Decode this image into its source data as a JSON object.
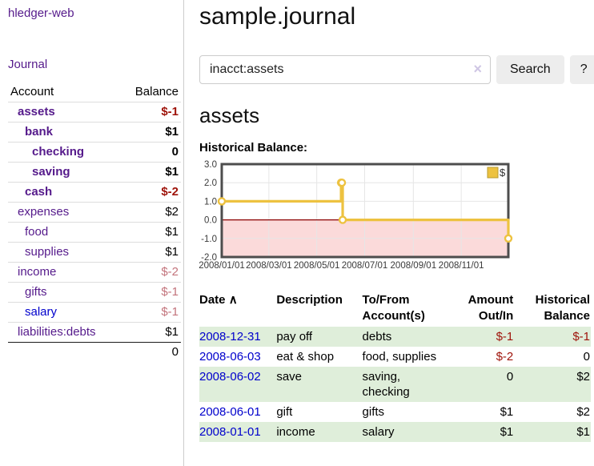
{
  "sidebar": {
    "brand": "hledger-web",
    "journal_label": "Journal",
    "table": {
      "account_header": "Account",
      "balance_header": "Balance",
      "accounts": [
        {
          "name": "assets",
          "depth": 1,
          "bold": true,
          "link": "visited",
          "balance": "$-1",
          "neg": "strong"
        },
        {
          "name": "bank",
          "depth": 2,
          "bold": true,
          "link": "visited",
          "balance": "$1",
          "neg": "none"
        },
        {
          "name": "checking",
          "depth": 3,
          "bold": true,
          "link": "visited",
          "balance": "0",
          "neg": "none"
        },
        {
          "name": "saving",
          "depth": 3,
          "bold": true,
          "link": "visited",
          "balance": "$1",
          "neg": "none"
        },
        {
          "name": "cash",
          "depth": 2,
          "bold": true,
          "link": "visited",
          "balance": "$-2",
          "neg": "strong"
        },
        {
          "name": "expenses",
          "depth": 1,
          "bold": false,
          "link": "visited",
          "balance": "$2",
          "neg": "none"
        },
        {
          "name": "food",
          "depth": 2,
          "bold": false,
          "link": "visited",
          "balance": "$1",
          "neg": "none"
        },
        {
          "name": "supplies",
          "depth": 2,
          "bold": false,
          "link": "visited",
          "balance": "$1",
          "neg": "none"
        },
        {
          "name": "income",
          "depth": 1,
          "bold": false,
          "link": "visited",
          "balance": "$-2",
          "neg": "soft"
        },
        {
          "name": "gifts",
          "depth": 2,
          "bold": false,
          "link": "visited",
          "balance": "$-1",
          "neg": "soft"
        },
        {
          "name": "salary",
          "depth": 2,
          "bold": false,
          "link": "unvisited",
          "balance": "$-1",
          "neg": "soft"
        },
        {
          "name": "liabilities:debts",
          "depth": 1,
          "bold": false,
          "link": "visited",
          "balance": "$1",
          "neg": "none"
        }
      ],
      "total": "0"
    }
  },
  "main": {
    "title": "sample.journal",
    "search": {
      "value": "inacct:assets",
      "clear_icon": "×",
      "button_label": "Search",
      "help_label": "?"
    },
    "account_heading": "assets",
    "chart_label": "Historical Balance:"
  },
  "chart_data": {
    "type": "line",
    "title": "Historical Balance",
    "steps": true,
    "series": [
      {
        "name": "$",
        "color": "#edc240",
        "points": [
          {
            "x": "2008-01-01",
            "y": 1
          },
          {
            "x": "2008-06-01",
            "y": 2
          },
          {
            "x": "2008-06-02",
            "y": 2
          },
          {
            "x": "2008-06-03",
            "y": 0
          },
          {
            "x": "2008-12-31",
            "y": -1
          }
        ]
      }
    ],
    "xlim": [
      "2008-01-01",
      "2008-12-31"
    ],
    "ylim": [
      -2,
      3
    ],
    "xticks": [
      {
        "x": "2008-01-01",
        "label": "2008/01/01"
      },
      {
        "x": "2008-03-01",
        "label": "2008/03/01"
      },
      {
        "x": "2008-05-01",
        "label": "2008/05/01"
      },
      {
        "x": "2008-07-01",
        "label": "2008/07/01"
      },
      {
        "x": "2008-09-01",
        "label": "2008/09/01"
      },
      {
        "x": "2008-11-01",
        "label": "2008/11/01"
      }
    ],
    "yticks": [
      "3.0",
      "2.0",
      "1.0",
      "0.0",
      "-1.0",
      "-2.0"
    ],
    "grid": true,
    "legend": {
      "label": "$",
      "position": "top-right"
    },
    "colors": {
      "negative_region": "#fbdada",
      "zero_line": "#8b0000",
      "gridline": "#e6e6e6",
      "border": "#4d4d4d",
      "tick_text": "#3a3a3a",
      "legend_swatch_border": "#b89b2e",
      "marker_fill": "#ffffff"
    }
  },
  "register": {
    "headers": {
      "date": "Date",
      "sort_icon": "∧",
      "description": "Description",
      "accounts": "To/From Account(s)",
      "amount": "Amount Out/In",
      "balance": "Historical Balance"
    },
    "rows": [
      {
        "date": "2008-12-31",
        "description": "pay off",
        "accounts": "debts",
        "amount": "$-1",
        "amount_neg": true,
        "balance": "$-1",
        "balance_neg": true,
        "highlight": true
      },
      {
        "date": "2008-06-03",
        "description": "eat & shop",
        "accounts": "food, supplies",
        "amount": "$-2",
        "amount_neg": true,
        "balance": "0",
        "balance_neg": false,
        "highlight": false
      },
      {
        "date": "2008-06-02",
        "description": "save",
        "accounts": "saving, checking",
        "amount": "0",
        "amount_neg": false,
        "balance": "$2",
        "balance_neg": false,
        "highlight": true
      },
      {
        "date": "2008-06-01",
        "description": "gift",
        "accounts": "gifts",
        "amount": "$1",
        "amount_neg": false,
        "balance": "$2",
        "balance_neg": false,
        "highlight": false
      },
      {
        "date": "2008-01-01",
        "description": "income",
        "accounts": "salary",
        "amount": "$1",
        "amount_neg": false,
        "balance": "$1",
        "balance_neg": false,
        "highlight": true
      }
    ]
  }
}
